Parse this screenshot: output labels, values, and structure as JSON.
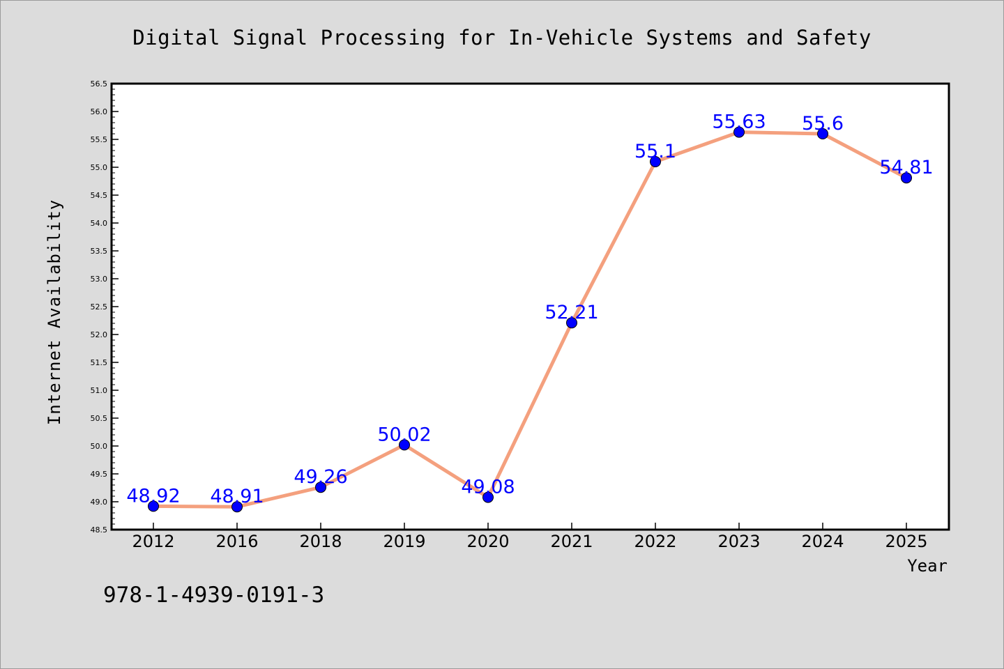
{
  "chart_data": {
    "type": "line",
    "title": "Digital Signal Processing for In-Vehicle Systems and Safety",
    "xlabel": "Year",
    "ylabel": "Internet Availability",
    "categories": [
      "2012",
      "2016",
      "2018",
      "2019",
      "2020",
      "2021",
      "2022",
      "2023",
      "2024",
      "2025"
    ],
    "series": [
      {
        "values": [
          48.92,
          48.91,
          49.26,
          50.02,
          49.08,
          52.21,
          55.1,
          55.63,
          55.6,
          54.81
        ],
        "value_labels": [
          "48.92",
          "48.91",
          "49.26",
          "50.02",
          "49.08",
          "52.21",
          "55.1",
          "55.63",
          "55.6",
          "54.81"
        ]
      }
    ],
    "ylim": [
      48.5,
      56.5
    ],
    "yticks": [
      "48.5",
      "49.0",
      "49.5",
      "50.0",
      "50.5",
      "51.0",
      "51.5",
      "52.0",
      "52.5",
      "53.0",
      "53.5",
      "54.0",
      "54.5",
      "55.0",
      "55.5",
      "56.0",
      "56.5"
    ],
    "grid": false,
    "line_color": "#f4a07e",
    "marker_color": "#0000ff",
    "label_color": "#0000ff"
  },
  "footer_text": "978-1-4939-0191-3"
}
